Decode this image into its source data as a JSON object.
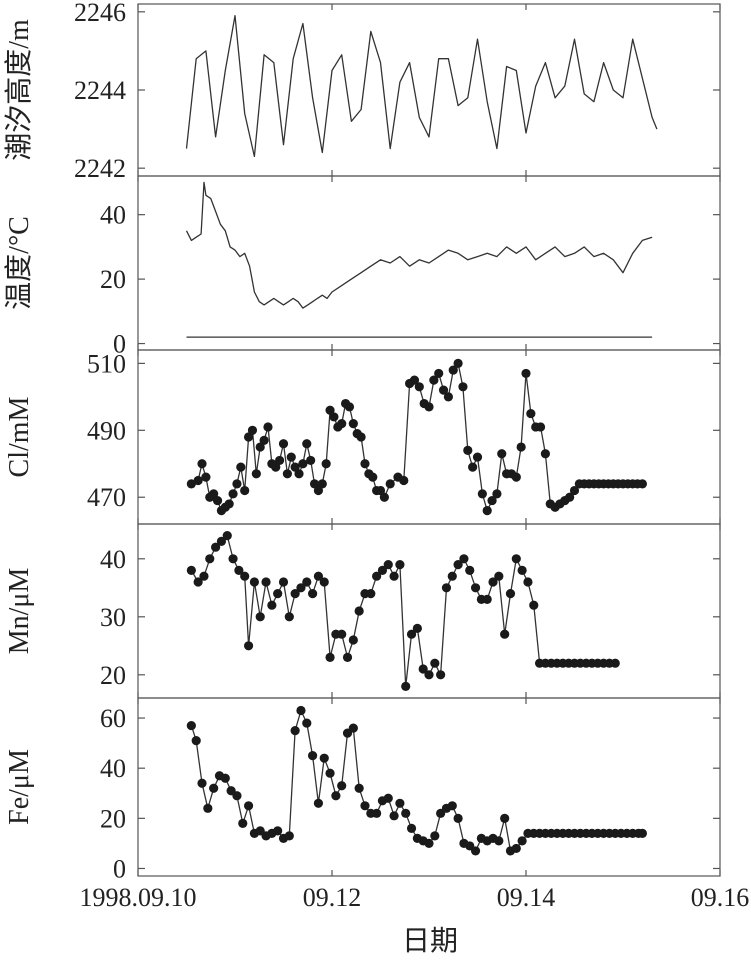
{
  "chart_data": {
    "type": "line",
    "xlabel": "日期",
    "x_ticks": [
      "1998.09.10",
      "09.12",
      "09.14",
      "09.16"
    ],
    "x_tick_values": [
      10,
      12,
      14,
      16
    ],
    "xlim": [
      10,
      16
    ],
    "panels": [
      {
        "ylabel": "潮汐高度/m",
        "ylim": [
          2241.8,
          2246.2
        ],
        "yticks": [
          2242,
          2244,
          2246
        ],
        "mode": "line",
        "series": [
          {
            "x": [
              10.5,
              10.6,
              10.7,
              10.8,
              10.9,
              11.0,
              11.1,
              11.2,
              11.3,
              11.4,
              11.5,
              11.6,
              11.7,
              11.8,
              11.9,
              12.0,
              12.1,
              12.2,
              12.3,
              12.4,
              12.5,
              12.6,
              12.7,
              12.8,
              12.9,
              13.0,
              13.1,
              13.2,
              13.3,
              13.4,
              13.5,
              13.6,
              13.7,
              13.8,
              13.9,
              14.0,
              14.1,
              14.2,
              14.3,
              14.4,
              14.5,
              14.6,
              14.7,
              14.8,
              14.9,
              15.0,
              15.1,
              15.2,
              15.3,
              15.35
            ],
            "y": [
              2242.5,
              2244.8,
              2245.0,
              2242.8,
              2244.5,
              2245.9,
              2243.4,
              2242.3,
              2244.9,
              2244.7,
              2242.6,
              2244.8,
              2245.7,
              2243.8,
              2242.4,
              2244.5,
              2244.9,
              2243.2,
              2243.5,
              2245.5,
              2244.7,
              2242.5,
              2244.2,
              2244.7,
              2243.3,
              2242.8,
              2244.8,
              2244.8,
              2243.6,
              2243.8,
              2245.3,
              2243.7,
              2242.5,
              2244.6,
              2244.5,
              2242.9,
              2244.1,
              2244.7,
              2243.8,
              2244.1,
              2245.3,
              2243.9,
              2243.7,
              2244.7,
              2244.0,
              2243.8,
              2245.3,
              2244.3,
              2243.3,
              2243.0
            ]
          }
        ]
      },
      {
        "ylabel": "温度/°C",
        "ylim": [
          -2,
          52
        ],
        "yticks": [
          0,
          20,
          40
        ],
        "mode": "line",
        "series": [
          {
            "x": [
              10.5,
              10.55,
              10.6,
              10.65,
              10.68,
              10.7,
              10.75,
              10.8,
              10.85,
              10.9,
              10.95,
              11.0,
              11.05,
              11.1,
              11.15,
              11.2,
              11.25,
              11.3,
              11.35,
              11.4,
              11.45,
              11.5,
              11.55,
              11.6,
              11.65,
              11.7,
              11.75,
              11.8,
              11.85,
              11.9,
              11.95,
              12.0,
              12.1,
              12.2,
              12.3,
              12.4,
              12.5,
              12.6,
              12.7,
              12.8,
              12.9,
              13.0,
              13.1,
              13.2,
              13.3,
              13.4,
              13.5,
              13.6,
              13.7,
              13.8,
              13.9,
              14.0,
              14.1,
              14.2,
              14.3,
              14.4,
              14.5,
              14.6,
              14.7,
              14.8,
              14.9,
              15.0,
              15.1,
              15.2,
              15.3
            ],
            "y": [
              35,
              32,
              33,
              34,
              50,
              46,
              45,
              41,
              37,
              35,
              30,
              29,
              27,
              28,
              24,
              16,
              13,
              12,
              13,
              14,
              13,
              12,
              13,
              14,
              13,
              11,
              12,
              13,
              14,
              15,
              14,
              16,
              18,
              20,
              22,
              24,
              26,
              25,
              27,
              24,
              26,
              25,
              27,
              29,
              28,
              26,
              27,
              28,
              27,
              30,
              28,
              30,
              26,
              28,
              30,
              27,
              28,
              30,
              27,
              28,
              26,
              22,
              28,
              32,
              33
            ]
          },
          {
            "x": [
              10.5,
              15.3
            ],
            "y": [
              2,
              2
            ]
          }
        ]
      },
      {
        "ylabel": "Cl/mM",
        "ylim": [
          462,
          514
        ],
        "yticks": [
          470,
          490,
          510
        ],
        "mode": "dots",
        "series": [
          {
            "x": [
              10.55,
              10.62,
              10.66,
              10.7,
              10.74,
              10.78,
              10.82,
              10.86,
              10.9,
              10.94,
              10.98,
              11.02,
              11.06,
              11.1,
              11.14,
              11.18,
              11.22,
              11.26,
              11.3,
              11.34,
              11.38,
              11.42,
              11.46,
              11.5,
              11.54,
              11.58,
              11.62,
              11.66,
              11.7,
              11.74,
              11.78,
              11.82,
              11.86,
              11.9,
              11.94,
              11.98,
              12.02,
              12.06,
              12.1,
              12.14,
              12.18,
              12.22,
              12.26,
              12.3,
              12.34,
              12.38,
              12.42,
              12.46,
              12.5,
              12.54,
              12.6,
              12.68,
              12.74,
              12.8,
              12.85,
              12.9,
              12.95,
              13.0,
              13.05,
              13.1,
              13.15,
              13.2,
              13.25,
              13.3,
              13.35,
              13.4,
              13.45,
              13.5,
              13.55,
              13.6,
              13.65,
              13.7,
              13.75,
              13.8,
              13.85,
              13.9,
              13.95,
              14.0,
              14.05,
              14.1,
              14.15,
              14.2,
              14.25,
              14.3,
              14.35,
              14.4,
              14.45,
              14.5,
              14.55,
              14.6,
              14.65,
              14.7,
              14.75,
              14.8,
              14.85,
              14.9,
              14.95,
              15.0,
              15.05,
              15.1,
              15.15,
              15.2
            ],
            "y": [
              474,
              475,
              480,
              476,
              470,
              471,
              469,
              466,
              467,
              468,
              471,
              474,
              479,
              472,
              488,
              490,
              477,
              485,
              487,
              491,
              480,
              479,
              481,
              486,
              477,
              482,
              479,
              477,
              480,
              486,
              481,
              474,
              472,
              474,
              480,
              496,
              494,
              491,
              492,
              498,
              497,
              492,
              489,
              488,
              480,
              477,
              476,
              472,
              472,
              470,
              474,
              476,
              475,
              504,
              505,
              503,
              498,
              497,
              505,
              507,
              502,
              500,
              508,
              510,
              503,
              484,
              479,
              482,
              471,
              466,
              469,
              471,
              483,
              477,
              477,
              476,
              485,
              507,
              495,
              491,
              491,
              483,
              468,
              467,
              468,
              469,
              470,
              472,
              474,
              474,
              474,
              474,
              474,
              474,
              474,
              474,
              474,
              474,
              474,
              474,
              474,
              474
            ]
          }
        ]
      },
      {
        "ylabel": "Mn/μM",
        "ylim": [
          16,
          46
        ],
        "yticks": [
          20,
          30,
          40
        ],
        "mode": "dots",
        "series": [
          {
            "x": [
              10.55,
              10.62,
              10.68,
              10.74,
              10.8,
              10.86,
              10.92,
              10.98,
              11.04,
              11.1,
              11.14,
              11.2,
              11.26,
              11.32,
              11.38,
              11.44,
              11.5,
              11.56,
              11.62,
              11.68,
              11.74,
              11.8,
              11.86,
              11.92,
              11.98,
              12.04,
              12.1,
              12.16,
              12.22,
              12.28,
              12.34,
              12.4,
              12.46,
              12.52,
              12.58,
              12.64,
              12.7,
              12.76,
              12.82,
              12.88,
              12.94,
              13.0,
              13.06,
              13.12,
              13.18,
              13.24,
              13.3,
              13.36,
              13.42,
              13.48,
              13.54,
              13.6,
              13.66,
              13.72,
              13.78,
              13.84,
              13.9,
              13.96,
              14.02,
              14.08,
              14.14,
              14.2,
              14.26,
              14.32,
              14.38,
              14.44,
              14.5,
              14.56,
              14.62,
              14.68,
              14.74,
              14.8,
              14.86,
              14.92
            ],
            "y": [
              38,
              36,
              37,
              40,
              42,
              43,
              44,
              40,
              38,
              37,
              25,
              36,
              30,
              36,
              32,
              34,
              36,
              30,
              34,
              35,
              36,
              34,
              37,
              36,
              23,
              27,
              27,
              23,
              26,
              31,
              34,
              34,
              37,
              38,
              39,
              37,
              39,
              18,
              27,
              28,
              21,
              20,
              22,
              20,
              35,
              37,
              39,
              40,
              38,
              35,
              33,
              33,
              36,
              37,
              27,
              34,
              40,
              38,
              36,
              32,
              22,
              22,
              22,
              22,
              22,
              22,
              22,
              22,
              22,
              22,
              22,
              22,
              22,
              22
            ]
          }
        ]
      },
      {
        "ylabel": "Fe/μM",
        "ylim": [
          -3,
          68
        ],
        "yticks": [
          0,
          20,
          40,
          60
        ],
        "mode": "dots",
        "series": [
          {
            "x": [
              10.55,
              10.6,
              10.66,
              10.72,
              10.78,
              10.84,
              10.9,
              10.96,
              11.02,
              11.08,
              11.14,
              11.2,
              11.26,
              11.32,
              11.38,
              11.44,
              11.5,
              11.56,
              11.62,
              11.68,
              11.74,
              11.8,
              11.86,
              11.92,
              11.98,
              12.04,
              12.1,
              12.16,
              12.22,
              12.28,
              12.34,
              12.4,
              12.46,
              12.52,
              12.58,
              12.64,
              12.7,
              12.76,
              12.82,
              12.88,
              12.94,
              13.0,
              13.06,
              13.12,
              13.18,
              13.24,
              13.3,
              13.36,
              13.42,
              13.48,
              13.54,
              13.6,
              13.66,
              13.72,
              13.78,
              13.84,
              13.9,
              13.96,
              14.02,
              14.08,
              14.14,
              14.2,
              14.26,
              14.32,
              14.38,
              14.44,
              14.5,
              14.56,
              14.62,
              14.68,
              14.74,
              14.8,
              14.86,
              14.92,
              14.98,
              15.04,
              15.1,
              15.16,
              15.2
            ],
            "y": [
              57,
              51,
              34,
              24,
              32,
              37,
              36,
              31,
              29,
              18,
              25,
              14,
              15,
              13,
              14,
              15,
              12,
              13,
              55,
              63,
              58,
              45,
              26,
              44,
              38,
              29,
              33,
              54,
              56,
              32,
              25,
              22,
              22,
              27,
              28,
              21,
              26,
              22,
              16,
              12,
              11,
              10,
              13,
              22,
              24,
              25,
              20,
              10,
              9,
              7,
              12,
              11,
              12,
              11,
              20,
              7,
              8,
              11,
              14,
              14,
              14,
              14,
              14,
              14,
              14,
              14,
              14,
              14,
              14,
              14,
              14,
              14,
              14,
              14,
              14,
              14,
              14,
              14,
              14
            ]
          }
        ]
      }
    ]
  }
}
